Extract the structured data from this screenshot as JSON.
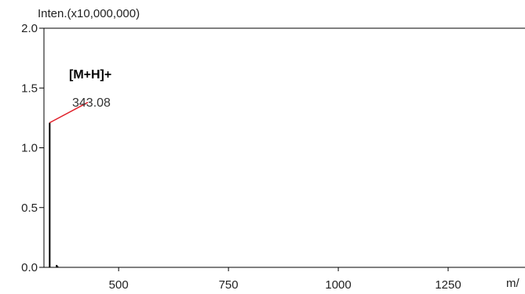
{
  "chart_data": {
    "type": "line",
    "title": "",
    "ylabel": "Inten.(x10,000,000)",
    "xlabel": "m/",
    "xlim": [
      330,
      1425
    ],
    "ylim": [
      0,
      2.0
    ],
    "x_ticks": [
      {
        "value": 500,
        "label": "500"
      },
      {
        "value": 750,
        "label": "750"
      },
      {
        "value": 1000,
        "label": "1000"
      },
      {
        "value": 1250,
        "label": "1250"
      }
    ],
    "y_ticks": [
      {
        "value": 0.0,
        "label": "0.0"
      },
      {
        "value": 0.5,
        "label": "0.5"
      },
      {
        "value": 1.0,
        "label": "1.0"
      },
      {
        "value": 1.5,
        "label": "1.5"
      },
      {
        "value": 2.0,
        "label": "2.0"
      }
    ],
    "grid": false,
    "series": [
      {
        "points": [
          {
            "x": 343.08,
            "y": 1.21
          },
          {
            "x": 359.0,
            "y": 0.02
          },
          {
            "x": 361.0,
            "y": 0.01
          }
        ]
      }
    ],
    "annotations": [
      {
        "label": "[M+H]+",
        "value": "343.08",
        "peak_x": 343.08,
        "peak_y": 1.21,
        "leader_to_x": 430,
        "leader_to_y": 1.38
      }
    ],
    "colors": {
      "peak": "#000000",
      "leader": "#e0202a",
      "axis": "#000000"
    }
  }
}
